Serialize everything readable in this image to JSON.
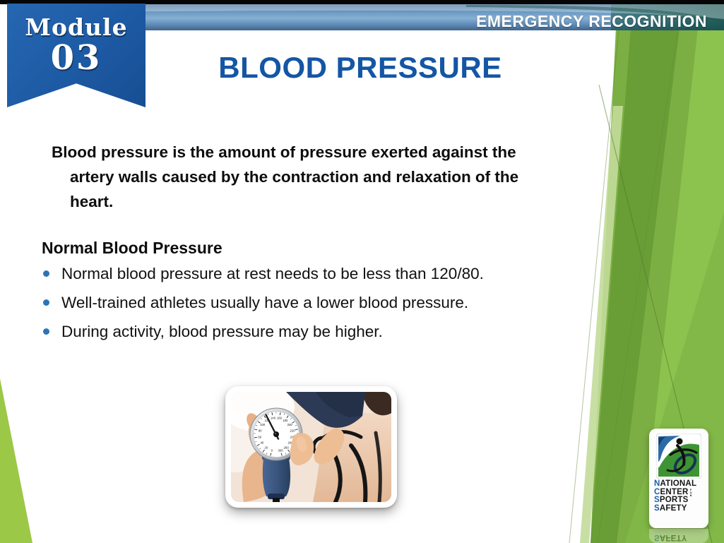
{
  "slide": {
    "module_ribbon": {
      "word": "Module",
      "number": "03"
    },
    "header_bar": {
      "label": "EMERGENCY RECOGNITION"
    },
    "title": "BLOOD PRESSURE",
    "intro_lines": [
      "Blood pressure is the amount of pressure exerted against the",
      "artery walls caused by the contraction and relaxation of the",
      "heart."
    ],
    "section": {
      "heading": "Normal Blood Pressure",
      "bullets": [
        "Normal blood pressure at rest needs to be less than 120/80.",
        "Well-trained athletes usually have a lower blood pressure.",
        "During activity, blood pressure may be higher."
      ]
    },
    "photo": {
      "dial_values": [
        0,
        20,
        40,
        60,
        80,
        100,
        120,
        140,
        160,
        180,
        200,
        220,
        240,
        260,
        280,
        300
      ]
    },
    "logo": {
      "lines": [
        {
          "initial": "N",
          "rest": "ATIONAL"
        },
        {
          "initial": "C",
          "rest": "ENTER"
        },
        {
          "initial": "S",
          "rest": "PORTS"
        },
        {
          "initial": "S",
          "rest": "AFETY"
        }
      ],
      "for_label": "FOR",
      "reflection_initial": "S",
      "reflection_rest": "AFETY"
    },
    "colors": {
      "ribbon_blue": "#1D5AA4",
      "title_blue": "#1456A4",
      "bullet_blue": "#2E74B5",
      "header_bar_blue": "#6F9DC6",
      "green_main": "#7CAF43",
      "green_bright": "#8CC24E",
      "green_dark": "#679B35",
      "green_pale": "#C2DC9A",
      "green_wedge": "#9CC847",
      "logo_green": "#3E9434",
      "logo_blue": "#2B6CA8"
    }
  }
}
